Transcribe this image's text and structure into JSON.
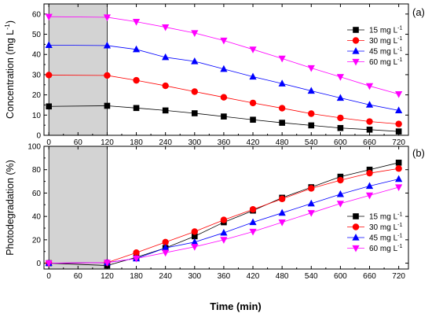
{
  "xlabel": "Time (min)",
  "x_ticks": [
    "0",
    "60",
    "120",
    "180",
    "240",
    "300",
    "360",
    "420",
    "480",
    "540",
    "600",
    "660",
    "720"
  ],
  "series_colors": [
    "#000000",
    "#ff0000",
    "#0000ff",
    "#ff00ff"
  ],
  "series_markers": [
    "square",
    "circle",
    "triangle-up",
    "triangle-down"
  ],
  "shaded_region": {
    "x": [
      0,
      120
    ],
    "color": "#d3d3d3"
  },
  "chart_data": [
    {
      "type": "line",
      "panel": "(a)",
      "ylabel_main": "Concentration (mg L",
      "ylabel_sup": "-1",
      "ylabel_tail": ")",
      "ylim": [
        0,
        65
      ],
      "y_ticks": [
        "0",
        "10",
        "20",
        "30",
        "40",
        "50",
        "60"
      ],
      "legend_position": "right",
      "x": [
        0,
        120,
        180,
        240,
        300,
        360,
        420,
        480,
        540,
        600,
        660,
        720
      ],
      "series": [
        {
          "name": "15 mg L",
          "sup": "-1",
          "values": [
            14.3,
            14.6,
            13.5,
            12.3,
            10.9,
            9.3,
            7.7,
            6.2,
            4.9,
            3.6,
            2.8,
            1.9
          ]
        },
        {
          "name": "30 mg L",
          "sup": "-1",
          "values": [
            29.8,
            29.6,
            27.2,
            24.5,
            21.6,
            18.8,
            16.0,
            13.4,
            10.7,
            8.6,
            6.8,
            5.6
          ]
        },
        {
          "name": "45 mg L",
          "sup": "-1",
          "values": [
            44.6,
            44.4,
            42.5,
            38.6,
            36.6,
            32.8,
            29.0,
            25.6,
            22.0,
            18.5,
            15.1,
            12.3
          ]
        },
        {
          "name": "60 mg L",
          "sup": "-1",
          "values": [
            58.7,
            58.4,
            56.2,
            53.5,
            50.6,
            46.9,
            42.5,
            38.0,
            33.3,
            28.9,
            24.4,
            20.4
          ]
        }
      ]
    },
    {
      "type": "line",
      "panel": "(b)",
      "ylabel_main": "Photodegradation (%)",
      "ylim": [
        -5,
        100
      ],
      "y_ticks": [
        "0",
        "20",
        "40",
        "60",
        "80",
        "100"
      ],
      "legend_position": "bottom-right",
      "x": [
        0,
        120,
        180,
        240,
        300,
        360,
        420,
        480,
        540,
        600,
        660,
        720
      ],
      "series": [
        {
          "name": "15 mg L",
          "sup": "-1",
          "values": [
            0,
            -2,
            5,
            13,
            23,
            35,
            45,
            56,
            65,
            74,
            80,
            86
          ]
        },
        {
          "name": "30 mg L",
          "sup": "-1",
          "values": [
            0,
            0.5,
            9,
            18,
            27,
            37,
            46,
            55,
            64,
            71,
            77,
            81
          ]
        },
        {
          "name": "45 mg L",
          "sup": "-1",
          "values": [
            0,
            0.5,
            4,
            13,
            18,
            26,
            35,
            43,
            51,
            59,
            66,
            72
          ]
        },
        {
          "name": "60 mg L",
          "sup": "-1",
          "values": [
            0,
            0.5,
            4,
            9,
            14,
            20,
            27,
            35,
            43,
            51,
            58,
            65
          ]
        }
      ]
    }
  ]
}
